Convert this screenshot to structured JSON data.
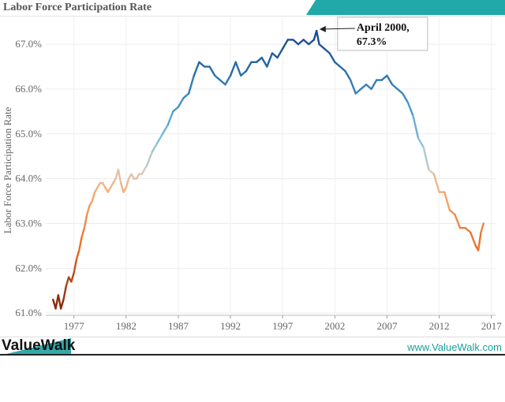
{
  "header": {
    "title": "Labor Force Participation Rate"
  },
  "footer": {
    "brand": "ValueWalk",
    "url": "www.ValueWalk.com"
  },
  "colors": {
    "teal": "#21a8a8",
    "high": "#1f5aa0",
    "low": "#8a2a06"
  },
  "chart_data": {
    "type": "line",
    "title": "Labor Force Participation Rate",
    "ylabel": "Labor Force Participation Rate",
    "xlabel": "",
    "ylim": [
      60.95,
      67.6
    ],
    "xlim": [
      1974.3,
      2017.4
    ],
    "yticks": [
      "61.0%",
      "62.0%",
      "63.0%",
      "64.0%",
      "65.0%",
      "66.0%",
      "67.0%"
    ],
    "xticks": [
      "1977",
      "1982",
      "1987",
      "1992",
      "1997",
      "2002",
      "2007",
      "2012",
      "2017"
    ],
    "grid": true,
    "color_encoding": "diverging orange-to-blue by rate",
    "annotation": {
      "line1": "April 2000,",
      "line2": "67.3%",
      "x": 2000.3,
      "y": 67.3
    },
    "series": [
      {
        "x": [
          1975.0,
          1975.25,
          1975.5,
          1975.75,
          1976.0,
          1976.25,
          1976.5,
          1976.75,
          1977.0,
          1977.25,
          1977.5,
          1977.75,
          1978.0,
          1978.25,
          1978.5,
          1978.75,
          1979.0,
          1979.25,
          1979.5,
          1979.75,
          1980.0,
          1980.25,
          1980.5,
          1980.75,
          1981.0,
          1981.25,
          1981.5,
          1981.75,
          1982.0,
          1982.25,
          1982.5,
          1982.75,
          1983.0,
          1983.25,
          1983.5,
          1983.75,
          1984.0,
          1984.5,
          1985.0,
          1985.5,
          1986.0,
          1986.5,
          1987.0,
          1987.5,
          1988.0,
          1988.5,
          1989.0,
          1989.5,
          1990.0,
          1990.5,
          1991.0,
          1991.5,
          1992.0,
          1992.5,
          1993.0,
          1993.5,
          1994.0,
          1994.5,
          1995.0,
          1995.5,
          1996.0,
          1996.5,
          1997.0,
          1997.5,
          1998.0,
          1998.5,
          1999.0,
          1999.5,
          2000.0,
          2000.25,
          2000.5,
          2001.0,
          2001.5,
          2002.0,
          2002.5,
          2003.0,
          2003.5,
          2004.0,
          2004.5,
          2005.0,
          2005.5,
          2006.0,
          2006.5,
          2007.0,
          2007.5,
          2008.0,
          2008.5,
          2009.0,
          2009.5,
          2010.0,
          2010.5,
          2011.0,
          2011.5,
          2012.0,
          2012.5,
          2013.0,
          2013.5,
          2014.0,
          2014.5,
          2015.0,
          2015.5,
          2015.75,
          2016.0,
          2016.25
        ],
        "y": [
          61.3,
          61.1,
          61.4,
          61.1,
          61.3,
          61.6,
          61.8,
          61.7,
          61.9,
          62.2,
          62.4,
          62.7,
          62.9,
          63.2,
          63.4,
          63.5,
          63.7,
          63.8,
          63.9,
          63.9,
          63.8,
          63.7,
          63.8,
          63.9,
          64.0,
          64.2,
          63.9,
          63.7,
          63.8,
          64.0,
          64.1,
          64.0,
          64.0,
          64.1,
          64.1,
          64.2,
          64.3,
          64.6,
          64.8,
          65.0,
          65.2,
          65.5,
          65.6,
          65.8,
          65.9,
          66.3,
          66.6,
          66.5,
          66.5,
          66.3,
          66.2,
          66.1,
          66.3,
          66.6,
          66.3,
          66.4,
          66.6,
          66.6,
          66.7,
          66.5,
          66.8,
          66.7,
          66.9,
          67.1,
          67.1,
          67.0,
          67.1,
          67.0,
          67.1,
          67.3,
          67.0,
          66.9,
          66.8,
          66.6,
          66.5,
          66.4,
          66.2,
          65.9,
          66.0,
          66.1,
          66.0,
          66.2,
          66.2,
          66.3,
          66.1,
          66.0,
          65.9,
          65.7,
          65.4,
          64.9,
          64.7,
          64.2,
          64.1,
          63.7,
          63.7,
          63.3,
          63.2,
          62.9,
          62.9,
          62.8,
          62.5,
          62.4,
          62.8,
          63.0
        ]
      }
    ]
  }
}
